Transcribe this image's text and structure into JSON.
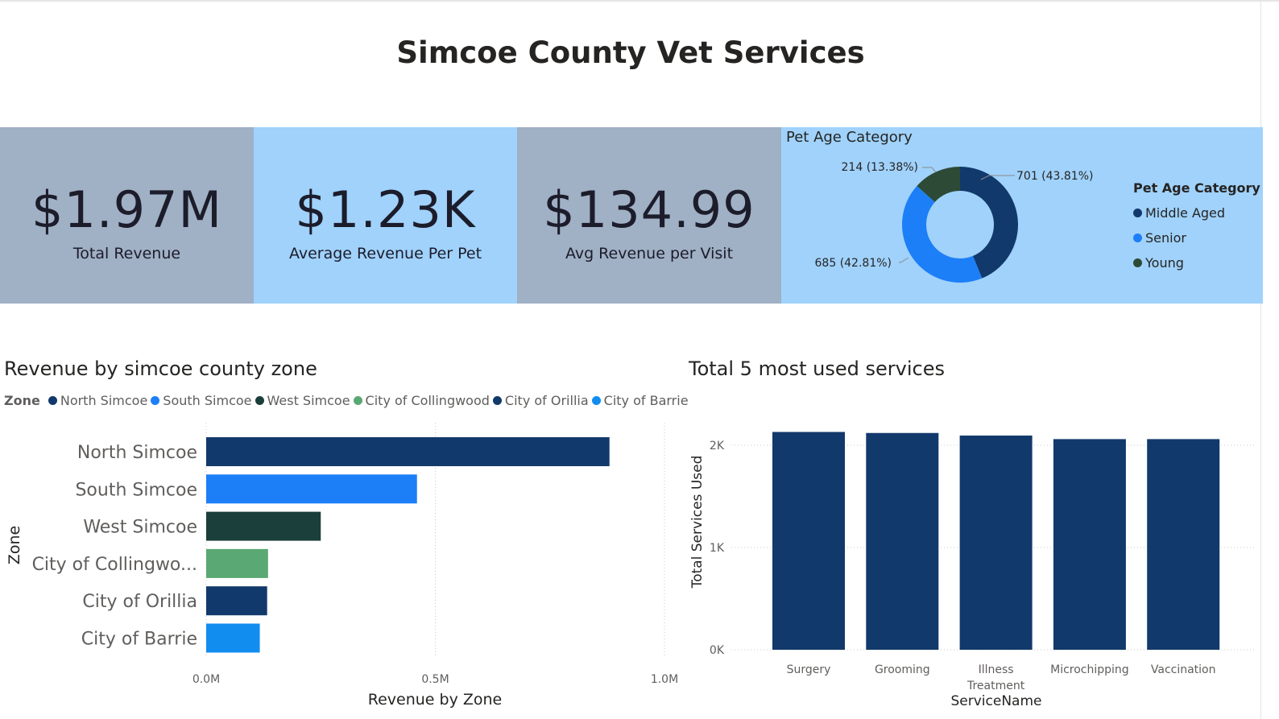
{
  "page": {
    "title": "Simcoe County Vet Services"
  },
  "kpis": [
    {
      "value": "$1.97M",
      "label": "Total Revenue"
    },
    {
      "value": "$1.23K",
      "label": "Average Revenue Per Pet"
    },
    {
      "value": "$134.99",
      "label": "Avg Revenue per Visit"
    }
  ],
  "colors": {
    "navy": "#12396b",
    "blue": "#1d7ff7",
    "dark_green": "#1b3f3a",
    "green": "#5aa873",
    "young_green": "#2d4a36",
    "barrie_blue": "#118df0",
    "kpi_grey": "#a0b0c5",
    "kpi_blue": "#a0d2fb"
  },
  "chart_data": [
    {
      "type": "pie",
      "title": "Pet Age Category",
      "legend_title": "Pet Age Category",
      "legend_position": "right",
      "slices": [
        {
          "name": "Middle Aged",
          "value": 701,
          "label": "701 (43.81%)",
          "color": "#12396b"
        },
        {
          "name": "Senior",
          "value": 685,
          "label": "685 (42.81%)",
          "color": "#1d7ff7"
        },
        {
          "name": "Young",
          "value": 214,
          "label": "214 (13.38%)",
          "color": "#2d4a36"
        }
      ]
    },
    {
      "type": "bar",
      "orientation": "horizontal",
      "title": "Revenue by simcoe county zone",
      "legend_title": "Zone",
      "legend_position": "top-left",
      "legend": [
        {
          "name": "North Simcoe",
          "color": "#12396b"
        },
        {
          "name": "South Simcoe",
          "color": "#1d7ff7"
        },
        {
          "name": "West Simcoe",
          "color": "#1b3f3a"
        },
        {
          "name": "City of Collingwood",
          "color": "#5aa873"
        },
        {
          "name": "City of Orillia",
          "color": "#12396b"
        },
        {
          "name": "City of Barrie",
          "color": "#118df0"
        }
      ],
      "categories": [
        "North Simcoe",
        "South Simcoe",
        "West Simcoe",
        "City of Collingwo...",
        "City of Orillia",
        "City of Barrie"
      ],
      "values": [
        0.88,
        0.46,
        0.25,
        0.135,
        0.133,
        0.117
      ],
      "colors": [
        "#12396b",
        "#1d7ff7",
        "#1b3f3a",
        "#5aa873",
        "#12396b",
        "#118df0"
      ],
      "xlabel": "Revenue by Zone",
      "ylabel": "Zone",
      "xlim": [
        0,
        1.0
      ],
      "xticks": [
        0,
        0.5,
        1.0
      ],
      "xtick_labels": [
        "0.0M",
        "0.5M",
        "1.0M"
      ],
      "grid": true
    },
    {
      "type": "bar",
      "title": "Total 5 most used services",
      "categories": [
        "Surgery",
        "Grooming",
        "Illness Treatment",
        "Microchipping",
        "Vaccination"
      ],
      "category_lines": [
        [
          "Surgery"
        ],
        [
          "Grooming"
        ],
        [
          "Illness",
          "Treatment"
        ],
        [
          "Microchipping"
        ],
        [
          "Vaccination"
        ]
      ],
      "values": [
        2130,
        2120,
        2095,
        2060,
        2060
      ],
      "color": "#12396b",
      "xlabel": "ServiceName",
      "ylabel": "Total Services Used",
      "ylim": [
        0,
        2000
      ],
      "yticks": [
        0,
        1000,
        2000
      ],
      "ytick_labels": [
        "0K",
        "1K",
        "2K"
      ],
      "grid": true
    }
  ]
}
